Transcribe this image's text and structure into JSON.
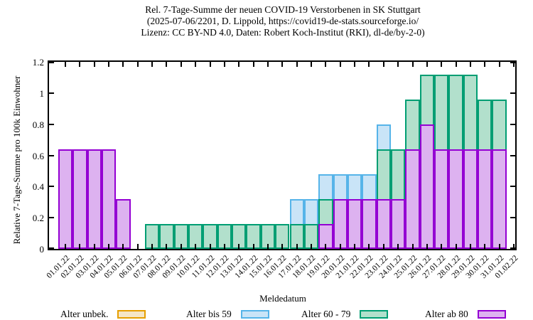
{
  "title": {
    "line1": "Rel. 7-Tage-Summe der neuen COVID-19 Verstorbenen in SK Stuttgart",
    "line2": "(2025-07-06/2201, D. Lippold, https://covid19-de-stats.sourceforge.io/",
    "line3": "Lizenz: CC BY-ND 4.0, Daten: Robert Koch-Institut (RKI), dl-de/by-2-0)"
  },
  "chart_data": {
    "type": "bar",
    "style": "overlapping-boxes-painted-in-series-order",
    "xlabel": "Meldedatum",
    "ylabel": "Relative 7-Tage-Summe pro 100k Einwohner",
    "ylim": [
      0,
      1.2
    ],
    "ytick_labels": [
      "0",
      "0.2",
      "0.4",
      "0.6",
      "0.8",
      "1",
      "1.2"
    ],
    "yticks": [
      0,
      0.2,
      0.4,
      0.6,
      0.8,
      1.0,
      1.2
    ],
    "grid": "off",
    "legend_position": "bottom",
    "categories": [
      "01.01.22",
      "02.01.22",
      "03.01.22",
      "04.01.22",
      "05.01.22",
      "06.01.22",
      "07.01.22",
      "08.01.22",
      "09.01.22",
      "10.01.22",
      "11.01.22",
      "12.01.22",
      "13.01.22",
      "14.01.22",
      "15.01.22",
      "16.01.22",
      "17.01.22",
      "18.01.22",
      "19.01.22",
      "20.01.22",
      "21.01.22",
      "22.01.22",
      "23.01.22",
      "24.01.22",
      "25.01.22",
      "26.01.22",
      "27.01.22",
      "28.01.22",
      "29.01.22",
      "30.01.22",
      "31.01.22",
      "01.02.22"
    ],
    "series": [
      {
        "name": "Alter unbek.",
        "border_color": "#e69f00",
        "fill_color": "#f5e6c6",
        "values": [
          null,
          null,
          null,
          null,
          null,
          null,
          null,
          null,
          null,
          null,
          null,
          null,
          null,
          null,
          null,
          null,
          null,
          null,
          null,
          null,
          null,
          null,
          null,
          null,
          null,
          null,
          null,
          null,
          null,
          null,
          null,
          null
        ]
      },
      {
        "name": "Alter bis 59",
        "border_color": "#56b4e9",
        "fill_color": "#c9e4f7",
        "values": [
          null,
          null,
          null,
          null,
          null,
          null,
          null,
          null,
          null,
          null,
          null,
          null,
          null,
          null,
          null,
          null,
          0.32,
          0.32,
          0.48,
          0.48,
          0.48,
          0.48,
          0.8,
          null,
          null,
          null,
          null,
          null,
          null,
          null,
          null,
          null
        ]
      },
      {
        "name": "Alter 60 - 79",
        "border_color": "#009e73",
        "fill_color": "#b2e0cc",
        "values": [
          null,
          null,
          null,
          null,
          null,
          null,
          0.16,
          0.16,
          0.16,
          0.16,
          0.16,
          0.16,
          0.16,
          0.16,
          0.16,
          0.16,
          0.16,
          0.16,
          0.32,
          null,
          null,
          null,
          0.64,
          0.64,
          0.96,
          1.12,
          1.12,
          1.12,
          1.12,
          0.96,
          0.96,
          null
        ]
      },
      {
        "name": "Alter ab 80",
        "border_color": "#9400d3",
        "fill_color": "#ddb2f0",
        "values": [
          0.64,
          0.64,
          0.64,
          0.64,
          0.32,
          null,
          null,
          null,
          null,
          null,
          null,
          null,
          null,
          null,
          null,
          null,
          null,
          null,
          0.16,
          0.32,
          0.32,
          0.32,
          0.32,
          0.32,
          0.64,
          0.8,
          0.64,
          0.64,
          0.64,
          0.64,
          0.64,
          null
        ]
      }
    ]
  }
}
